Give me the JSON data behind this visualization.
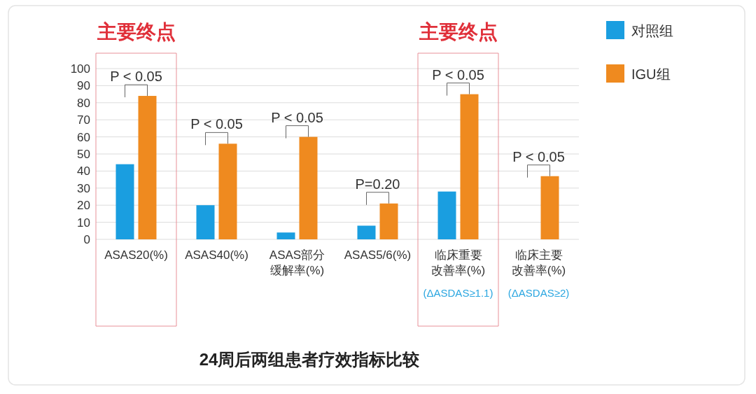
{
  "chart_data": {
    "type": "bar",
    "title": "24周后两组患者疗效指标比较",
    "categories": [
      "ASAS20(%)",
      "ASAS40(%)",
      "ASAS部分缓解率(%)",
      "ASAS5/6(%)",
      "临床重要改善率(%)",
      "临床主要改善率(%)"
    ],
    "series": [
      {
        "name": "对照组",
        "color": "#1a9ee0",
        "values": [
          44,
          20,
          4,
          8,
          28,
          null
        ]
      },
      {
        "name": "IGU组",
        "color": "#ef8a1f",
        "values": [
          84,
          56,
          60,
          21,
          85,
          37
        ]
      }
    ],
    "ylim": [
      0,
      100
    ],
    "yticks": [
      0,
      10,
      20,
      30,
      40,
      50,
      60,
      70,
      80,
      90,
      100
    ],
    "grid": "y",
    "legend": "top right",
    "annotations": [
      "P < 0.05",
      "P < 0.05",
      "P < 0.05",
      "P=0.20",
      "P < 0.05",
      "P < 0.05",
      "(ΔASDAS≥1.1)",
      "(ΔASDAS≥2)",
      "主要终点",
      "主要终点"
    ]
  }
}
